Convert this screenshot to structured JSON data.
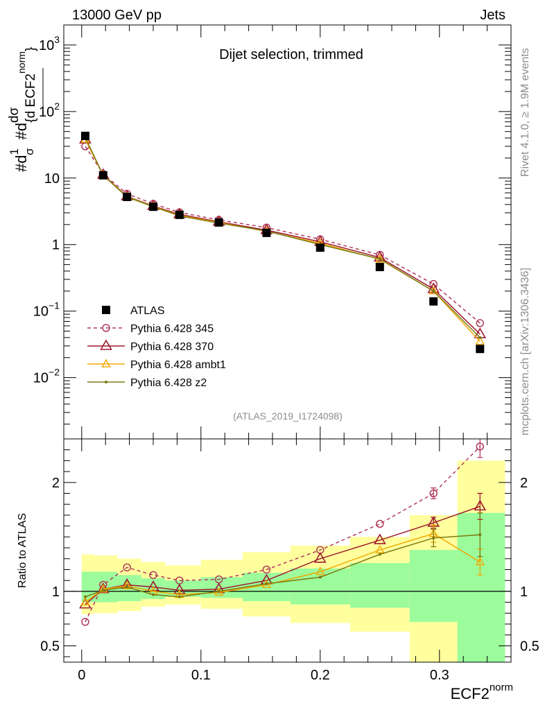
{
  "header": {
    "energy": "13000 GeV pp",
    "category": "Jets"
  },
  "side": {
    "rivet": "Rivet 4.1.0, ≥ 1.9M events",
    "mcplots": "mcplots.cern.ch [arXiv:1306.3436]"
  },
  "colors": {
    "atlas": "#000000",
    "p345": "#b03a5b",
    "p370": "#9e1a2e",
    "ambt1": "#f0a800",
    "z2": "#7a7a10",
    "band_yellow": "#ffff9e",
    "band_green": "#9cfc9c"
  },
  "chart_data": [
    {
      "type": "line",
      "title": "Dijet selection, trimmed",
      "analysis": "(ATLAS_2019_I1724098)",
      "ylabel": {
        "pre": "#d",
        "one": "1",
        "sigma": "σ",
        "mid": "#d",
        "num": "dσ",
        "den": "{d ECF2",
        "sup": "norm",
        "close": "}"
      },
      "yscale": "log",
      "ylim": [
        0.0012,
        2000
      ],
      "xlim": [
        -0.015,
        0.36
      ],
      "ticks_y": [
        {
          "v": 1000,
          "base": "10",
          "exp": "3"
        },
        {
          "v": 100,
          "base": "10",
          "exp": "2"
        },
        {
          "v": 10,
          "base": "10",
          "exp": ""
        },
        {
          "v": 1,
          "base": "1",
          "exp": ""
        },
        {
          "v": 0.1,
          "base": "10",
          "exp": "−1"
        },
        {
          "v": 0.01,
          "base": "10",
          "exp": "−2"
        }
      ],
      "x": [
        0.003,
        0.018,
        0.038,
        0.06,
        0.082,
        0.115,
        0.155,
        0.2,
        0.25,
        0.295,
        0.334
      ],
      "series": [
        {
          "name": "ATLAS",
          "values": [
            43,
            11,
            5.2,
            3.7,
            2.8,
            2.15,
            1.5,
            0.9,
            0.46,
            0.14,
            0.027
          ]
        },
        {
          "name": "Pythia 6.428 345",
          "values": [
            30,
            11.5,
            5.8,
            4.1,
            3.05,
            2.35,
            1.8,
            1.2,
            0.7,
            0.255,
            0.066
          ]
        },
        {
          "name": "Pythia 6.428 370",
          "values": [
            38,
            11.2,
            5.3,
            3.8,
            2.85,
            2.2,
            1.65,
            1.1,
            0.64,
            0.215,
            0.045
          ]
        },
        {
          "name": "Pythia 6.428 ambt1",
          "values": [
            38,
            11.1,
            5.25,
            3.75,
            2.75,
            2.15,
            1.58,
            1.05,
            0.6,
            0.2,
            0.035
          ]
        },
        {
          "name": "Pythia 6.428 z2",
          "values": [
            41,
            11,
            5.2,
            3.7,
            2.7,
            2.1,
            1.6,
            1.0,
            0.61,
            0.2,
            0.04
          ]
        }
      ]
    },
    {
      "type": "line",
      "ylabel": "Ratio to ATLAS",
      "xlabel": {
        "base": "ECF2",
        "sup": "norm"
      },
      "ylim": [
        0.35,
        2.4
      ],
      "xlim": [
        -0.015,
        0.36
      ],
      "ticks_y": [
        {
          "v": 0.5,
          "label": "0.5"
        },
        {
          "v": 1,
          "label": "1"
        },
        {
          "v": 2,
          "label": "2"
        }
      ],
      "ticks_x": [
        {
          "v": 0,
          "label": "0"
        },
        {
          "v": 0.1,
          "label": "0.1"
        },
        {
          "v": 0.2,
          "label": "0.2"
        },
        {
          "v": 0.3,
          "label": "0.3"
        }
      ],
      "band_bins": [
        {
          "lo": 0.0,
          "hi": 0.01,
          "y_lo": 0.79,
          "y_hi": 1.34,
          "g_lo": 0.9,
          "g_hi": 1.18
        },
        {
          "lo": 0.01,
          "hi": 0.03,
          "y_lo": 0.8,
          "y_hi": 1.33,
          "g_lo": 0.9,
          "g_hi": 1.18
        },
        {
          "lo": 0.03,
          "hi": 0.05,
          "y_lo": 0.82,
          "y_hi": 1.3,
          "g_lo": 0.91,
          "g_hi": 1.15
        },
        {
          "lo": 0.05,
          "hi": 0.07,
          "y_lo": 0.86,
          "y_hi": 1.27,
          "g_lo": 0.93,
          "g_hi": 1.12
        },
        {
          "lo": 0.07,
          "hi": 0.1,
          "y_lo": 0.88,
          "y_hi": 1.24,
          "g_lo": 0.95,
          "g_hi": 1.1
        },
        {
          "lo": 0.1,
          "hi": 0.135,
          "y_lo": 0.84,
          "y_hi": 1.29,
          "g_lo": 0.94,
          "g_hi": 1.13
        },
        {
          "lo": 0.135,
          "hi": 0.175,
          "y_lo": 0.77,
          "y_hi": 1.36,
          "g_lo": 0.91,
          "g_hi": 1.17
        },
        {
          "lo": 0.175,
          "hi": 0.225,
          "y_lo": 0.71,
          "y_hi": 1.42,
          "g_lo": 0.88,
          "g_hi": 1.21
        },
        {
          "lo": 0.225,
          "hi": 0.275,
          "y_lo": 0.63,
          "y_hi": 1.5,
          "g_lo": 0.85,
          "g_hi": 1.26
        },
        {
          "lo": 0.275,
          "hi": 0.315,
          "y_lo": 0.33,
          "y_hi": 1.7,
          "g_lo": 0.72,
          "g_hi": 1.38
        },
        {
          "lo": 0.315,
          "hi": 0.355,
          "y_lo": 0.33,
          "y_hi": 2.2,
          "g_lo": 0.33,
          "g_hi": 1.72
        }
      ],
      "x": [
        0.003,
        0.018,
        0.038,
        0.06,
        0.082,
        0.115,
        0.155,
        0.2,
        0.25,
        0.295,
        0.334
      ],
      "series": [
        {
          "name": "Pythia 6.428 345",
          "values": [
            0.72,
            1.06,
            1.22,
            1.15,
            1.1,
            1.11,
            1.2,
            1.38,
            1.62,
            1.9,
            2.33
          ],
          "err": [
            0,
            0,
            0,
            0,
            0,
            0,
            0,
            0,
            0,
            0.05,
            0.1
          ]
        },
        {
          "name": "Pythia 6.428 370",
          "values": [
            0.88,
            1.02,
            1.06,
            1.04,
            1.01,
            1.02,
            1.1,
            1.3,
            1.47,
            1.63,
            1.78
          ],
          "err": [
            0,
            0,
            0,
            0,
            0,
            0,
            0,
            0,
            0,
            0.05,
            0.12
          ]
        },
        {
          "name": "Pythia 6.428 ambt1",
          "values": [
            0.9,
            1.02,
            1.05,
            1.0,
            0.97,
            0.99,
            1.06,
            1.18,
            1.38,
            1.53,
            1.27
          ],
          "err": [
            0,
            0,
            0,
            0,
            0,
            0,
            0,
            0,
            0,
            0.08,
            0.12
          ]
        },
        {
          "name": "Pythia 6.428 z2",
          "values": [
            0.95,
            1.01,
            1.04,
            0.97,
            0.95,
            1.0,
            1.07,
            1.13,
            1.34,
            1.49,
            1.52
          ],
          "err": [
            0,
            0,
            0,
            0,
            0,
            0,
            0,
            0,
            0,
            0.08,
            0.2
          ]
        }
      ]
    }
  ]
}
